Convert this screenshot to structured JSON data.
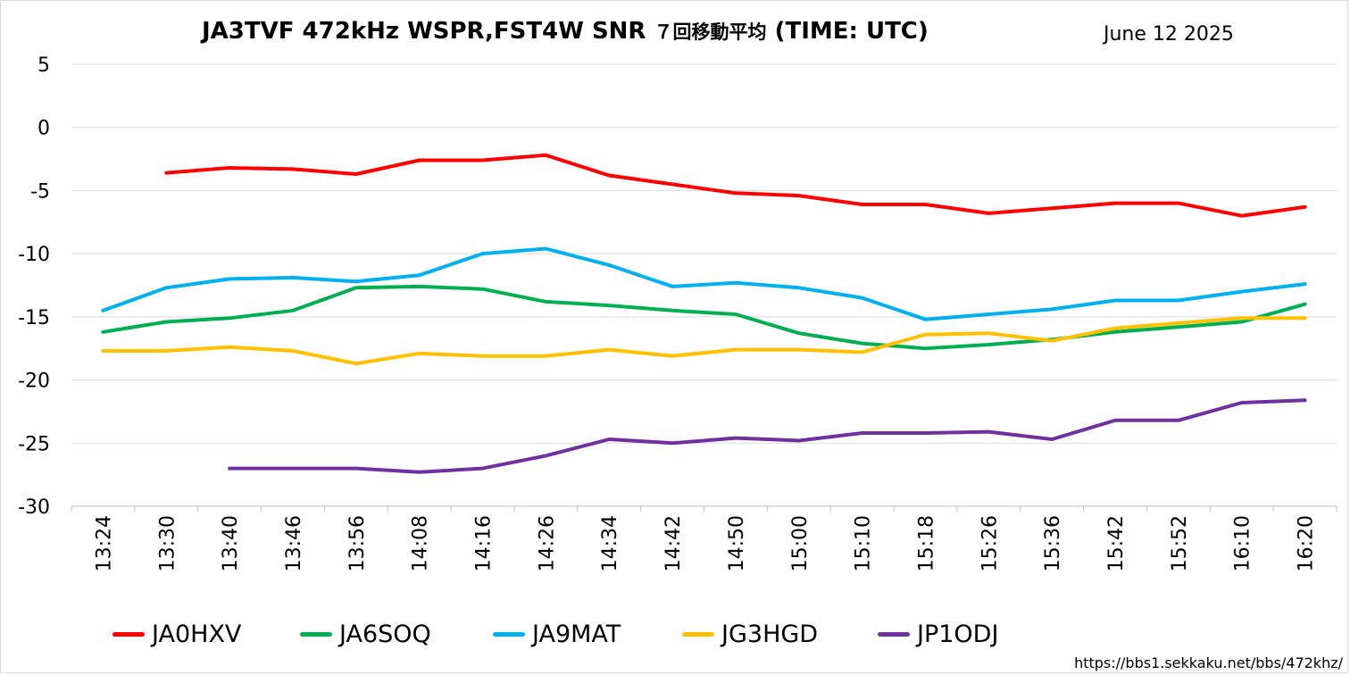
{
  "chart_data": {
    "type": "line",
    "title_main": "JA3TVF 472kHz WSPR,FST4W SNR",
    "title_jp": "７回移動平均",
    "title_suffix": "(TIME: UTC)",
    "date": "June 12 2025",
    "xlabel": "",
    "ylabel": "",
    "ylim": [
      -30,
      5
    ],
    "yticks": [
      5,
      0,
      -5,
      -10,
      -15,
      -20,
      -25,
      -30
    ],
    "grid": true,
    "legend_position": "bottom",
    "categories": [
      "13:24",
      "13:30",
      "13:40",
      "13:46",
      "13:56",
      "14:08",
      "14:16",
      "14:26",
      "14:34",
      "14:42",
      "14:50",
      "15:00",
      "15:10",
      "15:18",
      "15:26",
      "15:36",
      "15:42",
      "15:52",
      "16:10",
      "16:20"
    ],
    "series": [
      {
        "name": "JA0HXV",
        "color": "#ff0000",
        "values": [
          null,
          -3.6,
          -3.2,
          -3.3,
          -3.7,
          -2.6,
          -2.6,
          -2.2,
          -3.8,
          -4.5,
          -5.2,
          -5.4,
          -6.1,
          -6.1,
          -6.8,
          -6.4,
          -6.0,
          -6.0,
          -7.0,
          -6.3
        ]
      },
      {
        "name": "JA6SOQ",
        "color": "#00b050",
        "values": [
          -16.2,
          -15.4,
          -15.1,
          -14.5,
          -12.7,
          -12.6,
          -12.8,
          -13.8,
          -14.1,
          -14.5,
          -14.8,
          -16.3,
          -17.1,
          -17.5,
          -17.2,
          -16.8,
          -16.2,
          -15.8,
          -15.4,
          -14.0
        ]
      },
      {
        "name": "JA9MAT",
        "color": "#00b0f0",
        "values": [
          -14.5,
          -12.7,
          -12.0,
          -11.9,
          -12.2,
          -11.7,
          -10.0,
          -9.6,
          -10.9,
          -12.6,
          -12.3,
          -12.7,
          -13.5,
          -15.2,
          -14.8,
          -14.4,
          -13.7,
          -13.7,
          -13.0,
          -12.4
        ]
      },
      {
        "name": "JG3HGD",
        "color": "#ffc000",
        "values": [
          -17.7,
          -17.7,
          -17.4,
          -17.7,
          -18.7,
          -17.9,
          -18.1,
          -18.1,
          -17.6,
          -18.1,
          -17.6,
          -17.6,
          -17.8,
          -16.4,
          -16.3,
          -16.9,
          -15.9,
          -15.5,
          -15.1,
          -15.1
        ]
      },
      {
        "name": "JP1ODJ",
        "color": "#7030a0",
        "values": [
          null,
          null,
          -27.0,
          -27.0,
          -27.0,
          -27.3,
          -27.0,
          -26.0,
          -24.7,
          -25.0,
          -24.6,
          -24.8,
          -24.2,
          -24.2,
          -24.1,
          -24.7,
          -23.2,
          -23.2,
          -21.8,
          -21.6
        ]
      }
    ]
  },
  "source_url": "https://bbs1.sekkaku.net/bbs/472khz/"
}
